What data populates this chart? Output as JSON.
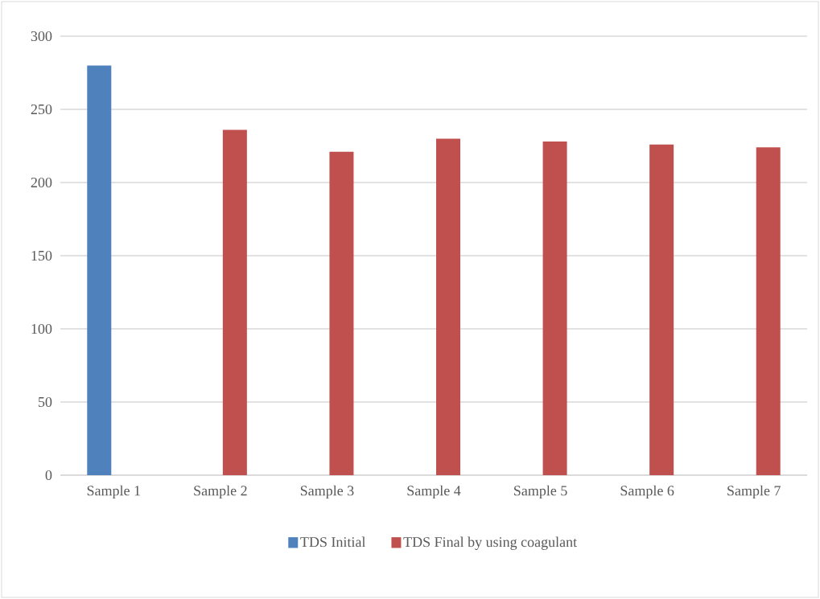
{
  "chart_data": {
    "type": "bar",
    "categories": [
      "Sample 1",
      "Sample 2",
      "Sample 3",
      "Sample 4",
      "Sample 5",
      "Sample 6",
      "Sample 7"
    ],
    "series": [
      {
        "name": "TDS Initial",
        "color": "#4f81bd",
        "values": [
          280,
          null,
          null,
          null,
          null,
          null,
          null
        ]
      },
      {
        "name": "TDS Final by using coagulant",
        "color": "#c0504d",
        "values": [
          null,
          236,
          221,
          230,
          228,
          226,
          224
        ]
      }
    ],
    "ylim": [
      0,
      300
    ],
    "yticks": [
      0,
      50,
      100,
      150,
      200,
      250,
      300
    ],
    "grid": "y",
    "legend": "bottom"
  }
}
